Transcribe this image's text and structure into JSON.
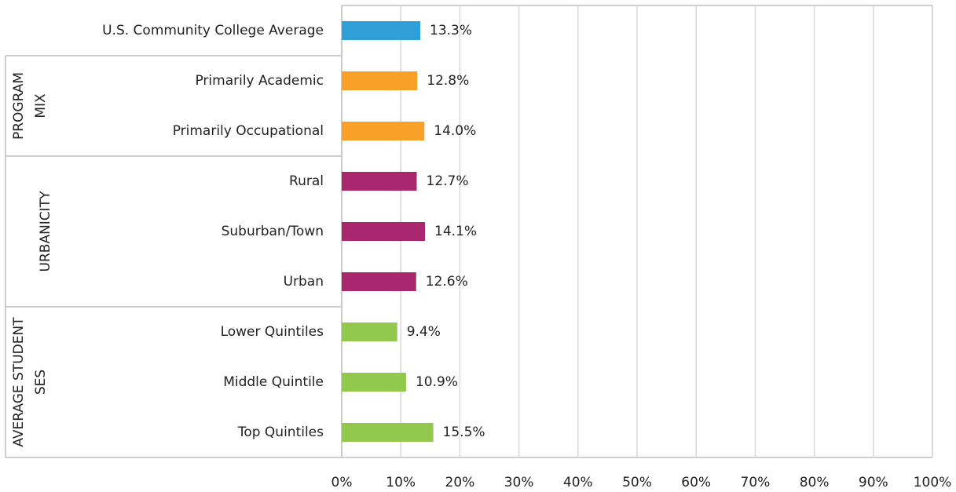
{
  "chart_data": {
    "type": "bar",
    "orientation": "horizontal",
    "categories": [
      "U.S. Community College Average",
      "Primarily Academic",
      "Primarily Occupational",
      "Rural",
      "Suburban/Town",
      "Urban",
      "Lower Quintiles",
      "Middle Quintile",
      "Top Quintiles"
    ],
    "values": [
      13.3,
      12.8,
      14.0,
      12.7,
      14.1,
      12.6,
      9.4,
      10.9,
      15.5
    ],
    "value_labels": [
      "13.3%",
      "12.8%",
      "14.0%",
      "12.7%",
      "14.1%",
      "12.6%",
      "9.4%",
      "10.9%",
      "15.5%"
    ],
    "colors": [
      "#2e9fd8",
      "#f7a128",
      "#f7a128",
      "#a8276f",
      "#a8276f",
      "#a8276f",
      "#92c84e",
      "#92c84e",
      "#92c84e"
    ],
    "groups": [
      [
        "PROGRAM",
        "MIX"
      ],
      [
        "URBANICITY"
      ],
      [
        "AVERAGE STUDENT",
        "SES"
      ]
    ],
    "xlim": [
      0,
      100
    ],
    "xticks": [
      {
        "value": 0,
        "label": "0%"
      },
      {
        "value": 10,
        "label": "10%"
      },
      {
        "value": 20,
        "label": "20%"
      },
      {
        "value": 30,
        "label": "30%"
      },
      {
        "value": 40,
        "label": "40%"
      },
      {
        "value": 50,
        "label": "50%"
      },
      {
        "value": 60,
        "label": "60%"
      },
      {
        "value": 70,
        "label": "70%"
      },
      {
        "value": 80,
        "label": "80%"
      },
      {
        "value": 90,
        "label": "90%"
      },
      {
        "value": 100,
        "label": "100%"
      }
    ],
    "grid": true
  }
}
